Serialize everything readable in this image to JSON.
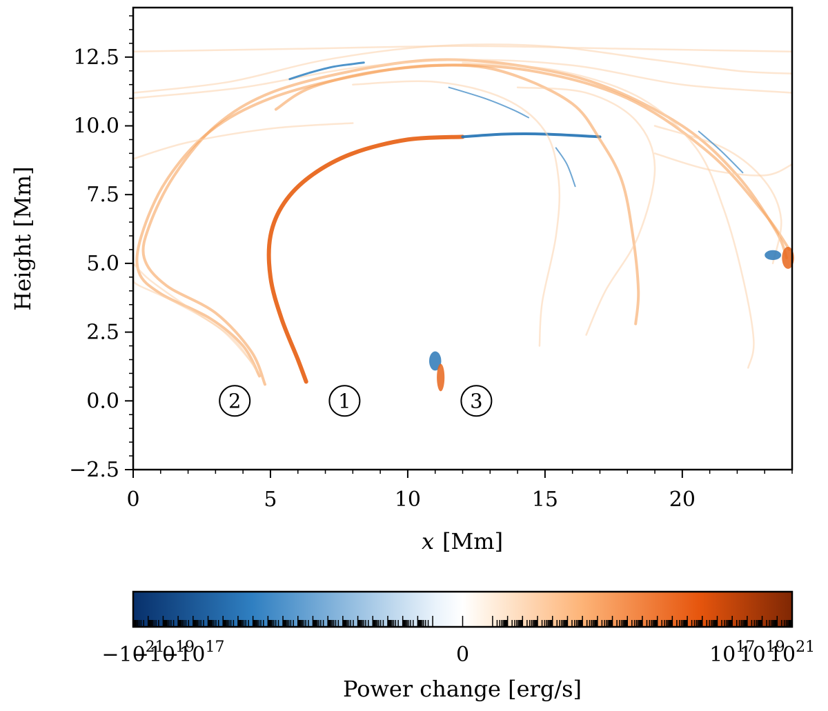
{
  "chart_data": {
    "type": "heatmap",
    "x_axis": {
      "label_var": "x",
      "label_unit": "[Mm]",
      "range": [
        0,
        24
      ],
      "ticks": [
        0,
        5,
        10,
        15,
        20
      ],
      "tick_labels": [
        "0",
        "5",
        "10",
        "15",
        "20"
      ]
    },
    "y_axis": {
      "label": "Height [Mm]",
      "range": [
        -2.5,
        14.3
      ],
      "ticks": [
        -2.5,
        0,
        2.5,
        5,
        7.5,
        10,
        12.5
      ],
      "tick_labels": [
        "−2.5",
        "0.0",
        "2.5",
        "5.0",
        "7.5",
        "10.0",
        "12.5"
      ]
    },
    "grid": false,
    "colorbar": {
      "label": "Power change [erg/s]",
      "scale": "symlog",
      "range": [
        -1e+21,
        1e+21
      ],
      "colors": [
        "#08306b",
        "#2f7fc1",
        "#eaf3fb",
        "#ffffff",
        "#fff0e0",
        "#fdb478",
        "#e6550d",
        "#7f2704"
      ],
      "major_ticks": [
        {
          "sign": "−",
          "base": "10",
          "exp": "21"
        },
        {
          "sign": "−",
          "base": "10",
          "exp": "19"
        },
        {
          "sign": "−",
          "base": "10",
          "exp": "17"
        },
        {
          "sign": "",
          "base": "0",
          "exp": ""
        },
        {
          "sign": "",
          "base": "10",
          "exp": "17"
        },
        {
          "sign": "",
          "base": "10",
          "exp": "19"
        },
        {
          "sign": "",
          "base": "10",
          "exp": "21"
        }
      ]
    },
    "annotations": [
      {
        "text": "1",
        "x": 7.7,
        "y": 0.0
      },
      {
        "text": "2",
        "x": 3.7,
        "y": 0.0
      },
      {
        "text": "3",
        "x": 12.5,
        "y": 0.0
      }
    ],
    "strands": [
      {
        "label": "1",
        "sign": "positive",
        "intensity": "strong",
        "path": [
          [
            6.3,
            0.7
          ],
          [
            6.0,
            1.5
          ],
          [
            5.4,
            3.0
          ],
          [
            5.0,
            4.5
          ],
          [
            5.0,
            6.0
          ],
          [
            5.5,
            7.2
          ],
          [
            6.5,
            8.2
          ],
          [
            8.0,
            9.0
          ],
          [
            10.0,
            9.5
          ],
          [
            12.0,
            9.6
          ]
        ]
      },
      {
        "label": "1",
        "sign": "negative",
        "intensity": "strong",
        "path": [
          [
            12.0,
            9.6
          ],
          [
            13.5,
            9.7
          ],
          [
            15.0,
            9.7
          ],
          [
            17.0,
            9.6
          ]
        ]
      },
      {
        "label": "2",
        "sign": "positive",
        "intensity": "medium",
        "path": [
          [
            4.8,
            0.6
          ],
          [
            4.3,
            1.8
          ],
          [
            3.0,
            3.2
          ],
          [
            1.2,
            4.2
          ],
          [
            0.4,
            5.2
          ],
          [
            0.6,
            6.4
          ],
          [
            1.5,
            8.2
          ],
          [
            3.0,
            10.0
          ],
          [
            5.0,
            11.2
          ],
          [
            8.0,
            12.0
          ],
          [
            11.0,
            12.4
          ],
          [
            14.0,
            12.2
          ],
          [
            17.0,
            11.5
          ],
          [
            20.0,
            10.0
          ],
          [
            22.0,
            8.2
          ],
          [
            23.4,
            6.2
          ],
          [
            23.8,
            5.2
          ]
        ]
      },
      {
        "label": "2",
        "sign": "positive",
        "intensity": "medium",
        "path": [
          [
            4.6,
            0.9
          ],
          [
            4.0,
            2.0
          ],
          [
            2.8,
            3.0
          ],
          [
            1.0,
            3.9
          ],
          [
            0.2,
            4.7
          ],
          [
            0.3,
            6.0
          ],
          [
            1.2,
            8.0
          ],
          [
            2.8,
            9.8
          ],
          [
            5.0,
            11.0
          ],
          [
            8.0,
            11.8
          ],
          [
            11.0,
            12.2
          ],
          [
            14.5,
            12.0
          ],
          [
            18.0,
            11.0
          ],
          [
            21.0,
            9.0
          ],
          [
            23.0,
            6.8
          ],
          [
            23.9,
            5.5
          ]
        ]
      },
      {
        "label": "2",
        "sign": "positive",
        "intensity": "faint",
        "path": [
          [
            4.5,
            1.1
          ],
          [
            3.6,
            2.3
          ],
          [
            2.0,
            3.4
          ],
          [
            0.6,
            4.4
          ],
          [
            0.0,
            5.0
          ]
        ]
      },
      {
        "label": "2",
        "sign": "positive",
        "intensity": "faint",
        "path": [
          [
            4.4,
            1.3
          ],
          [
            3.2,
            2.6
          ],
          [
            1.5,
            3.6
          ],
          [
            0.2,
            4.2
          ],
          [
            0.0,
            4.4
          ]
        ]
      },
      {
        "sign": "positive",
        "intensity": "medium",
        "path": [
          [
            5.2,
            10.6
          ],
          [
            6.5,
            11.4
          ],
          [
            9.0,
            12.0
          ],
          [
            12.0,
            12.2
          ],
          [
            14.0,
            11.8
          ],
          [
            16.0,
            10.8
          ],
          [
            17.0,
            9.5
          ],
          [
            17.8,
            8.0
          ],
          [
            18.2,
            6.0
          ],
          [
            18.4,
            4.0
          ],
          [
            18.3,
            2.8
          ]
        ]
      },
      {
        "sign": "positive",
        "intensity": "faint",
        "path": [
          [
            8.0,
            11.5
          ],
          [
            11.0,
            11.6
          ],
          [
            13.5,
            11.0
          ],
          [
            15.0,
            9.8
          ],
          [
            15.5,
            8.0
          ],
          [
            15.4,
            6.0
          ],
          [
            14.9,
            3.6
          ],
          [
            14.8,
            2.0
          ]
        ]
      },
      {
        "sign": "positive",
        "intensity": "faint",
        "path": [
          [
            14.0,
            11.4
          ],
          [
            16.5,
            11.2
          ],
          [
            18.3,
            10.2
          ],
          [
            19.0,
            8.5
          ],
          [
            18.4,
            6.0
          ],
          [
            17.2,
            4.0
          ],
          [
            16.5,
            2.4
          ]
        ]
      },
      {
        "sign": "positive",
        "intensity": "faint",
        "path": [
          [
            12.0,
            12.3
          ],
          [
            15.5,
            12.0
          ],
          [
            18.5,
            11.0
          ],
          [
            20.5,
            9.2
          ],
          [
            21.5,
            7.0
          ],
          [
            22.2,
            4.5
          ],
          [
            22.6,
            2.2
          ],
          [
            22.4,
            1.2
          ]
        ]
      },
      {
        "sign": "positive",
        "intensity": "faint",
        "path": [
          [
            0.0,
            12.7
          ],
          [
            6.0,
            12.8
          ],
          [
            12.0,
            12.9
          ],
          [
            18.0,
            12.8
          ],
          [
            24.0,
            12.7
          ]
        ]
      },
      {
        "sign": "positive",
        "intensity": "faint",
        "path": [
          [
            0.0,
            11.2
          ],
          [
            3.5,
            11.6
          ],
          [
            7.0,
            12.4
          ],
          [
            11.0,
            12.9
          ],
          [
            15.0,
            12.9
          ],
          [
            19.0,
            12.4
          ],
          [
            22.0,
            12.0
          ],
          [
            24.0,
            11.9
          ]
        ]
      },
      {
        "sign": "positive",
        "intensity": "faint",
        "path": [
          [
            0.0,
            11.0
          ],
          [
            4.0,
            11.4
          ],
          [
            8.0,
            12.1
          ],
          [
            12.0,
            12.4
          ],
          [
            16.0,
            12.2
          ],
          [
            20.0,
            11.5
          ],
          [
            24.0,
            11.2
          ]
        ]
      },
      {
        "sign": "positive",
        "intensity": "faint",
        "path": [
          [
            0.0,
            8.8
          ],
          [
            2.0,
            9.4
          ],
          [
            5.0,
            9.9
          ],
          [
            8.0,
            10.1
          ]
        ]
      },
      {
        "sign": "positive",
        "intensity": "faint",
        "path": [
          [
            19.0,
            9.0
          ],
          [
            21.0,
            8.4
          ],
          [
            23.0,
            8.2
          ],
          [
            24.0,
            8.6
          ]
        ]
      },
      {
        "sign": "positive",
        "intensity": "faint",
        "path": [
          [
            19.0,
            10.0
          ],
          [
            21.5,
            9.2
          ],
          [
            23.0,
            8.0
          ],
          [
            23.6,
            6.6
          ],
          [
            23.3,
            5.0
          ]
        ]
      },
      {
        "sign": "negative",
        "intensity": "medium",
        "path": [
          [
            5.7,
            11.7
          ],
          [
            6.5,
            11.95
          ],
          [
            7.3,
            12.15
          ],
          [
            8.0,
            12.25
          ],
          [
            8.4,
            12.3
          ]
        ]
      },
      {
        "sign": "negative",
        "intensity": "faint",
        "path": [
          [
            11.5,
            11.4
          ],
          [
            12.8,
            11.0
          ],
          [
            13.8,
            10.6
          ],
          [
            14.4,
            10.3
          ]
        ]
      },
      {
        "sign": "negative",
        "intensity": "faint",
        "path": [
          [
            15.4,
            9.2
          ],
          [
            15.8,
            8.6
          ],
          [
            16.1,
            7.8
          ]
        ]
      },
      {
        "sign": "negative",
        "intensity": "faint",
        "path": [
          [
            20.6,
            9.8
          ],
          [
            21.4,
            9.1
          ],
          [
            22.2,
            8.3
          ]
        ]
      }
    ],
    "blobs": [
      {
        "label": "3",
        "sign": "negative",
        "x": 11.0,
        "y": 1.45,
        "rx": 0.22,
        "ry": 0.35
      },
      {
        "label": "3",
        "sign": "positive",
        "x": 11.2,
        "y": 0.85,
        "rx": 0.14,
        "ry": 0.5
      },
      {
        "sign": "positive",
        "x": 23.85,
        "y": 5.2,
        "rx": 0.22,
        "ry": 0.4
      },
      {
        "sign": "negative",
        "x": 23.3,
        "y": 5.3,
        "rx": 0.3,
        "ry": 0.18
      }
    ]
  }
}
